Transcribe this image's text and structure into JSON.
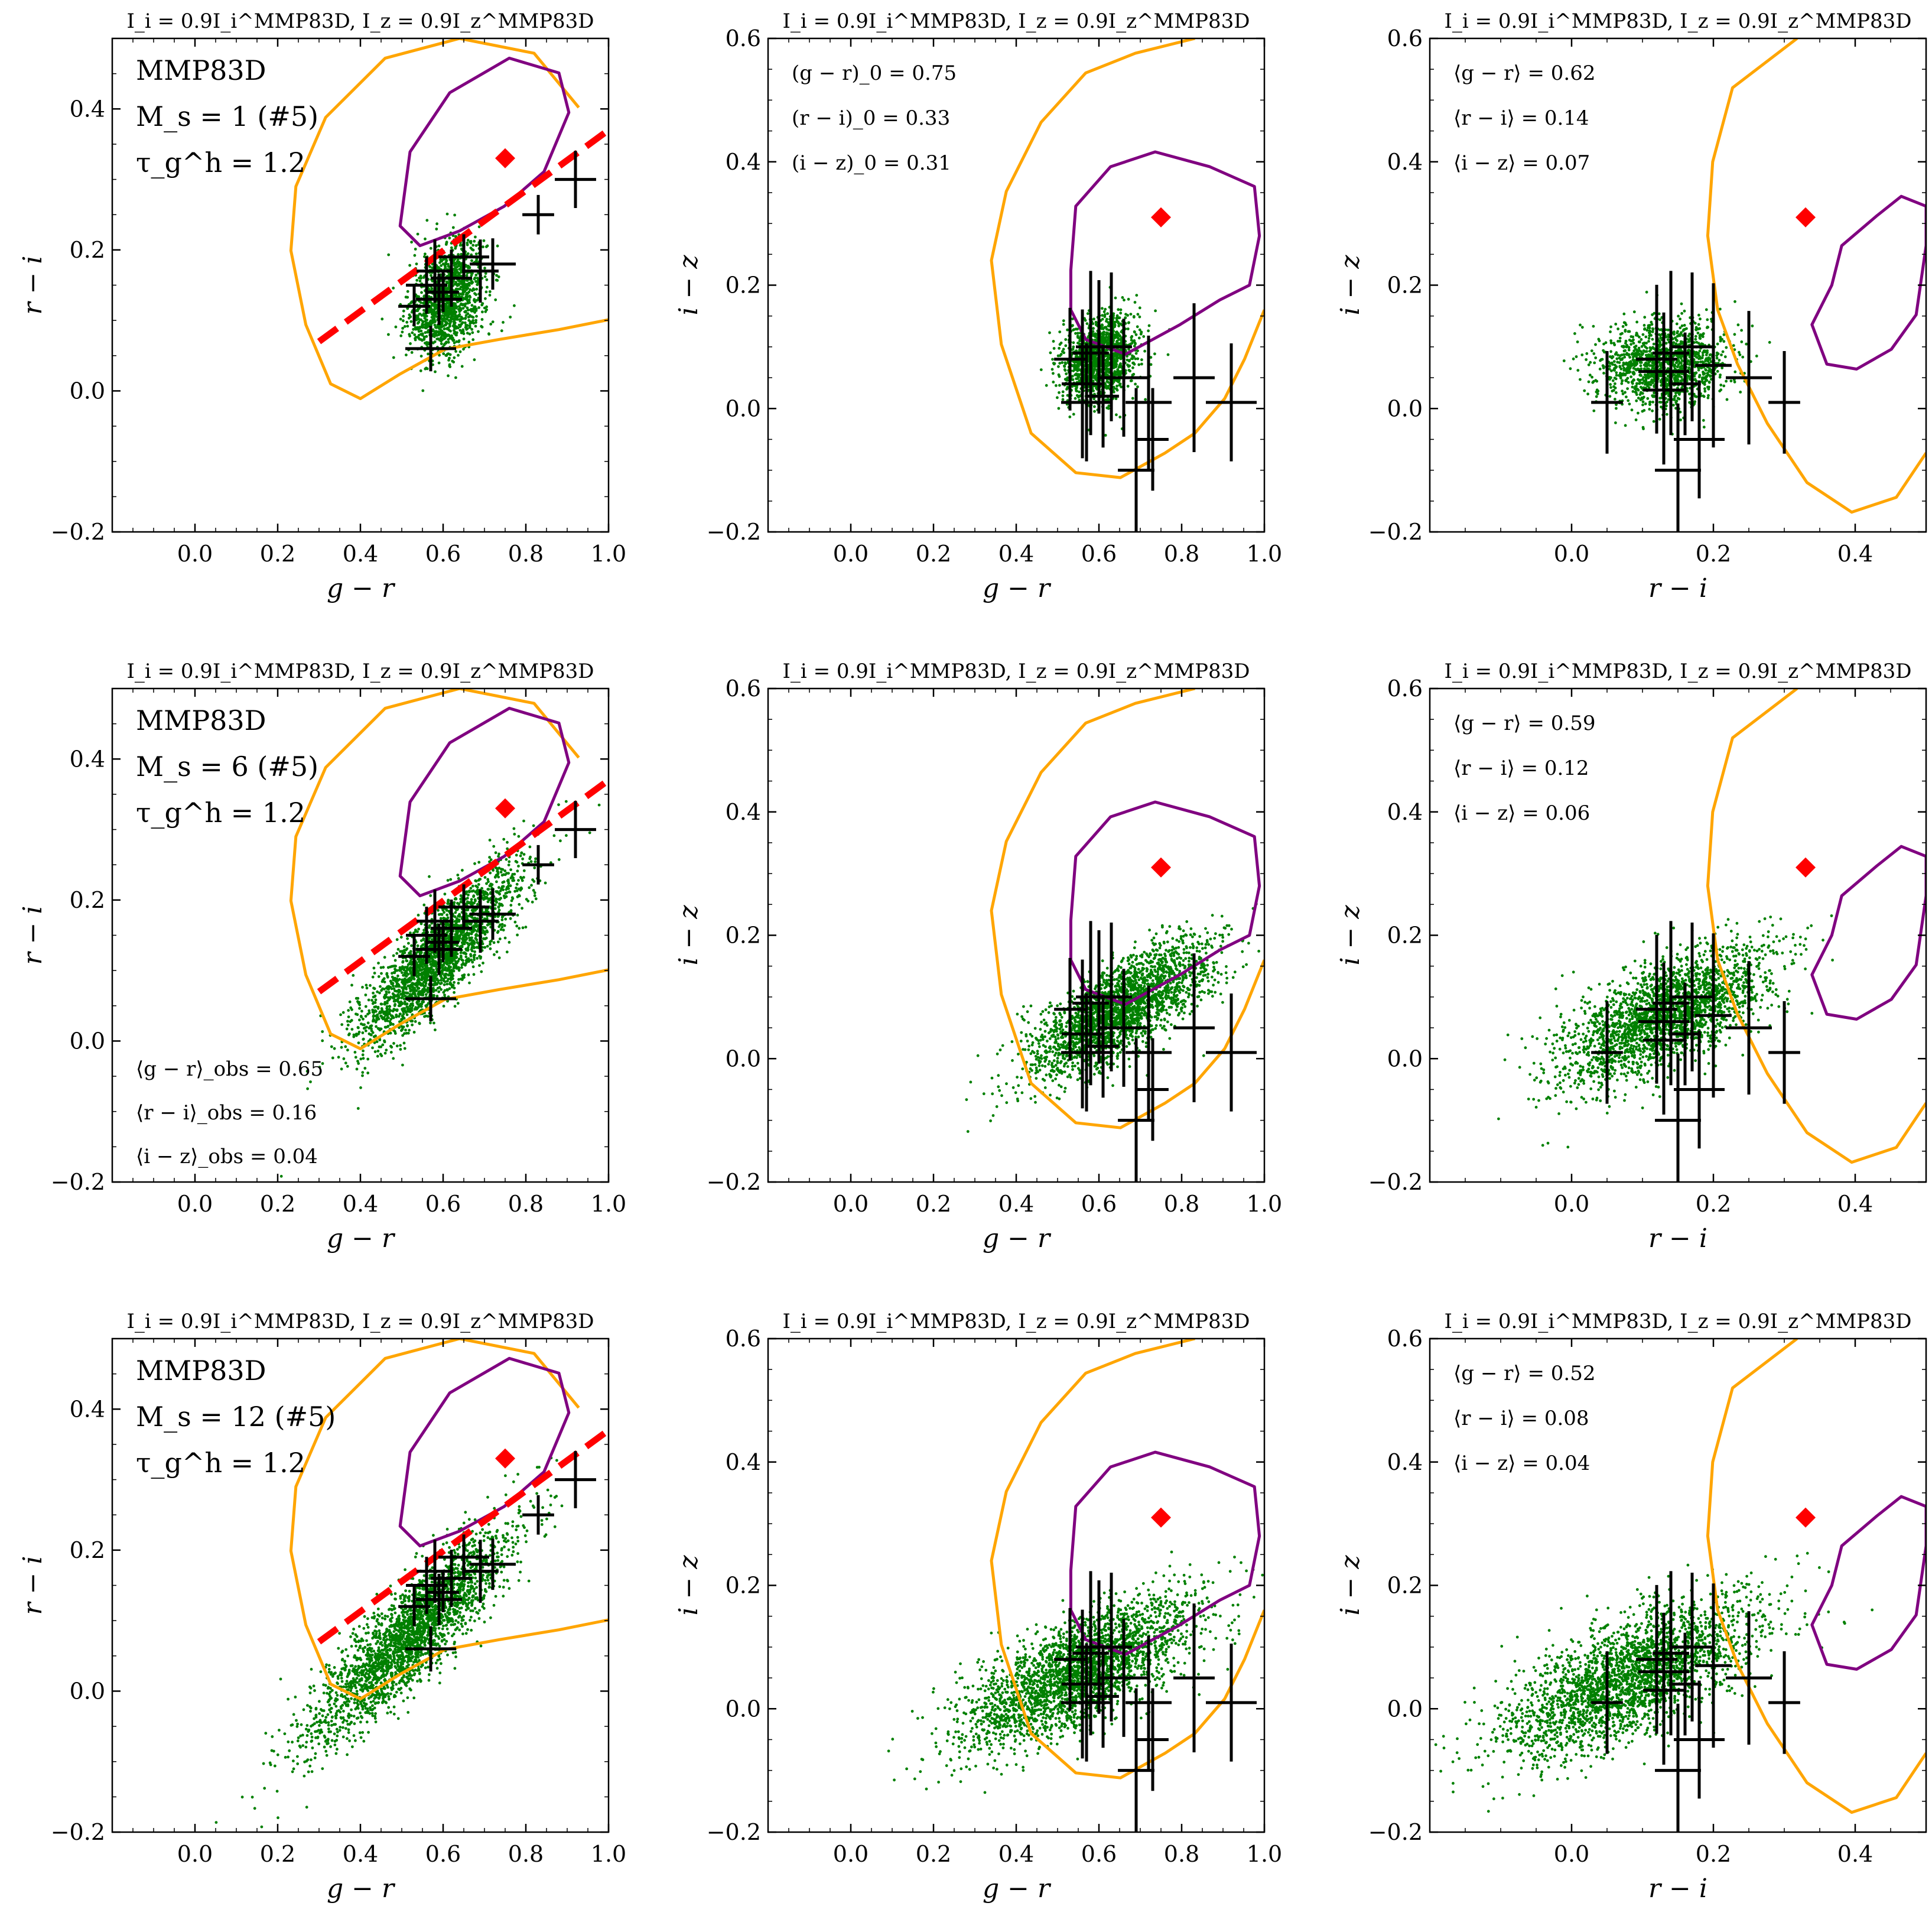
{
  "figure": {
    "description": "Colour-colour diagrams for MMP83D models",
    "colors": {
      "orange_contour": "#FFA500",
      "purple_contour": "#800080",
      "model_points": "#008000",
      "red_marker": "#FF0000",
      "red_line": "#FF0000",
      "obs_crosses": "#000000"
    }
  },
  "chart_data": [
    {
      "id": "r1c1",
      "type": "scatter",
      "title": "I_i = 0.9I_i^MMP83D, I_z = 0.9I_z^MMP83D",
      "xlabel": "g − r",
      "ylabel": "r − i",
      "xlim": [
        -0.2,
        1.0
      ],
      "ylim": [
        -0.2,
        0.5
      ],
      "xticks": [
        "0.0",
        "0.2",
        "0.4",
        "0.6",
        "0.8",
        "1.0"
      ],
      "yticks": [
        "−0.2",
        "0.0",
        "0.2",
        "0.4"
      ],
      "annotations": [
        "MMP83D",
        "M_s = 1 (#5)",
        "τ_g^h = 1.2"
      ],
      "model_cloud": {
        "center": [
          0.61,
          0.13
        ],
        "spread": [
          0.045,
          0.04
        ],
        "rho": 0.3,
        "n": 1400
      },
      "red_marker": [
        0.75,
        0.33
      ],
      "red_line": [
        [
          0.3,
          0.07
        ],
        [
          1.0,
          0.37
        ]
      ],
      "obs_points": [
        [
          0.53,
          0.12
        ],
        [
          0.56,
          0.15
        ],
        [
          0.57,
          0.06
        ],
        [
          0.58,
          0.17
        ],
        [
          0.59,
          0.13
        ],
        [
          0.6,
          0.14
        ],
        [
          0.62,
          0.16
        ],
        [
          0.65,
          0.19
        ],
        [
          0.69,
          0.17
        ],
        [
          0.72,
          0.18
        ],
        [
          0.83,
          0.25
        ],
        [
          0.92,
          0.3
        ]
      ]
    },
    {
      "id": "r1c2",
      "type": "scatter",
      "title": "I_i = 0.9I_i^MMP83D, I_z = 0.9I_z^MMP83D",
      "xlabel": "g − r",
      "ylabel": "i − z",
      "xlim": [
        -0.2,
        1.0
      ],
      "ylim": [
        -0.2,
        0.6
      ],
      "xticks": [
        "0.0",
        "0.2",
        "0.4",
        "0.6",
        "0.8",
        "1.0"
      ],
      "yticks": [
        "−0.2",
        "0.0",
        "0.2",
        "0.4",
        "0.6"
      ],
      "annotations": [
        "(g − r)_0 = 0.75",
        "(r − i)_0 = 0.33",
        "(i − z)_0 = 0.31"
      ],
      "model_cloud": {
        "center": [
          0.6,
          0.08
        ],
        "spread": [
          0.045,
          0.035
        ],
        "rho": 0.2,
        "n": 1400
      },
      "red_marker": [
        0.75,
        0.31
      ],
      "obs_points": [
        [
          0.53,
          0.08
        ],
        [
          0.56,
          0.04
        ],
        [
          0.57,
          0.01
        ],
        [
          0.58,
          0.09
        ],
        [
          0.6,
          0.1
        ],
        [
          0.61,
          0.02
        ],
        [
          0.63,
          0.1
        ],
        [
          0.66,
          0.05
        ],
        [
          0.69,
          -0.1
        ],
        [
          0.72,
          0.01
        ],
        [
          0.73,
          -0.05
        ],
        [
          0.83,
          0.05
        ],
        [
          0.92,
          0.01
        ]
      ]
    },
    {
      "id": "r1c3",
      "type": "scatter",
      "title": "I_i = 0.9I_i^MMP83D, I_z = 0.9I_z^MMP83D",
      "xlabel": "r − i",
      "ylabel": "i − z",
      "xlim": [
        -0.2,
        0.5
      ],
      "ylim": [
        -0.2,
        0.6
      ],
      "xticks": [
        "0.0",
        "0.2",
        "0.4"
      ],
      "yticks": [
        "−0.2",
        "0.0",
        "0.2",
        "0.4",
        "0.6"
      ],
      "annotations": [
        "⟨g − r⟩ = 0.62",
        "⟨r − i⟩ = 0.14",
        "⟨i − z⟩ = 0.07"
      ],
      "model_cloud": {
        "center": [
          0.13,
          0.07
        ],
        "spread": [
          0.045,
          0.035
        ],
        "rho": 0.1,
        "n": 1400
      },
      "red_marker": [
        0.33,
        0.31
      ],
      "obs_points": [
        [
          0.05,
          0.01
        ],
        [
          0.12,
          0.08
        ],
        [
          0.13,
          0.06
        ],
        [
          0.14,
          0.09
        ],
        [
          0.15,
          -0.1
        ],
        [
          0.16,
          0.04
        ],
        [
          0.17,
          0.1
        ],
        [
          0.18,
          -0.05
        ],
        [
          0.2,
          0.07
        ],
        [
          0.25,
          0.05
        ],
        [
          0.3,
          0.01
        ],
        [
          0.13,
          0.03
        ]
      ]
    },
    {
      "id": "r2c1",
      "type": "scatter",
      "title": "I_i = 0.9I_i^MMP83D, I_z = 0.9I_z^MMP83D",
      "xlabel": "g − r",
      "ylabel": "r − i",
      "xlim": [
        -0.2,
        1.0
      ],
      "ylim": [
        -0.2,
        0.5
      ],
      "xticks": [
        "0.0",
        "0.2",
        "0.4",
        "0.6",
        "0.8",
        "1.0"
      ],
      "yticks": [
        "−0.2",
        "0.0",
        "0.2",
        "0.4"
      ],
      "annotations": [
        "MMP83D",
        "M_s = 6 (#5)",
        "τ_g^h = 1.2",
        "⟨g − r⟩_obs = 0.65",
        "⟨r − i⟩_obs = 0.16",
        "⟨i − z⟩_obs = 0.04"
      ],
      "model_cloud": {
        "center": [
          0.59,
          0.12
        ],
        "spread": [
          0.1,
          0.065
        ],
        "rho": 0.85,
        "n": 2400
      },
      "red_marker": [
        0.75,
        0.33
      ],
      "red_line": [
        [
          0.3,
          0.07
        ],
        [
          1.0,
          0.37
        ]
      ],
      "obs_points": [
        [
          0.53,
          0.12
        ],
        [
          0.56,
          0.15
        ],
        [
          0.57,
          0.06
        ],
        [
          0.58,
          0.17
        ],
        [
          0.59,
          0.13
        ],
        [
          0.6,
          0.14
        ],
        [
          0.62,
          0.16
        ],
        [
          0.65,
          0.19
        ],
        [
          0.69,
          0.17
        ],
        [
          0.72,
          0.18
        ],
        [
          0.83,
          0.25
        ],
        [
          0.92,
          0.3
        ]
      ]
    },
    {
      "id": "r2c2",
      "type": "scatter",
      "title": "I_i = 0.9I_i^MMP83D, I_z = 0.9I_z^MMP83D",
      "xlabel": "g − r",
      "ylabel": "i − z",
      "xlim": [
        -0.2,
        1.0
      ],
      "ylim": [
        -0.2,
        0.6
      ],
      "xticks": [
        "0.0",
        "0.2",
        "0.4",
        "0.6",
        "0.8",
        "1.0"
      ],
      "yticks": [
        "−0.2",
        "0.0",
        "0.2",
        "0.4",
        "0.6"
      ],
      "annotations": [],
      "model_cloud": {
        "center": [
          0.65,
          0.08
        ],
        "spread": [
          0.11,
          0.055
        ],
        "rho": 0.75,
        "n": 2400
      },
      "red_marker": [
        0.75,
        0.31
      ],
      "obs_points": [
        [
          0.53,
          0.08
        ],
        [
          0.56,
          0.04
        ],
        [
          0.57,
          0.01
        ],
        [
          0.58,
          0.09
        ],
        [
          0.6,
          0.1
        ],
        [
          0.61,
          0.02
        ],
        [
          0.63,
          0.1
        ],
        [
          0.66,
          0.05
        ],
        [
          0.69,
          -0.1
        ],
        [
          0.72,
          0.01
        ],
        [
          0.73,
          -0.05
        ],
        [
          0.83,
          0.05
        ],
        [
          0.92,
          0.01
        ]
      ]
    },
    {
      "id": "r2c3",
      "type": "scatter",
      "title": "I_i = 0.9I_i^MMP83D, I_z = 0.9I_z^MMP83D",
      "xlabel": "r − i",
      "ylabel": "i − z",
      "xlim": [
        -0.2,
        0.5
      ],
      "ylim": [
        -0.2,
        0.6
      ],
      "xticks": [
        "0.0",
        "0.2",
        "0.4"
      ],
      "yticks": [
        "−0.2",
        "0.0",
        "0.2",
        "0.4",
        "0.6"
      ],
      "annotations": [
        "⟨g − r⟩ = 0.59",
        "⟨r − i⟩ = 0.12",
        "⟨i − z⟩ = 0.06"
      ],
      "model_cloud": {
        "center": [
          0.13,
          0.07
        ],
        "spread": [
          0.075,
          0.055
        ],
        "rho": 0.65,
        "n": 2400
      },
      "red_marker": [
        0.33,
        0.31
      ],
      "obs_points": [
        [
          0.05,
          0.01
        ],
        [
          0.12,
          0.08
        ],
        [
          0.13,
          0.06
        ],
        [
          0.14,
          0.09
        ],
        [
          0.15,
          -0.1
        ],
        [
          0.16,
          0.04
        ],
        [
          0.17,
          0.1
        ],
        [
          0.18,
          -0.05
        ],
        [
          0.2,
          0.07
        ],
        [
          0.25,
          0.05
        ],
        [
          0.3,
          0.01
        ],
        [
          0.13,
          0.03
        ]
      ]
    },
    {
      "id": "r3c1",
      "type": "scatter",
      "title": "I_i = 0.9I_i^MMP83D, I_z = 0.9I_z^MMP83D",
      "xlabel": "g − r",
      "ylabel": "r − i",
      "xlim": [
        -0.2,
        1.0
      ],
      "ylim": [
        -0.2,
        0.5
      ],
      "xticks": [
        "0.0",
        "0.2",
        "0.4",
        "0.6",
        "0.8",
        "1.0"
      ],
      "yticks": [
        "−0.2",
        "0.0",
        "0.2",
        "0.4"
      ],
      "annotations": [
        "MMP83D",
        "M_s = 12 (#5)",
        "τ_g^h = 1.2"
      ],
      "model_cloud": {
        "center": [
          0.52,
          0.08
        ],
        "spread": [
          0.12,
          0.075
        ],
        "rho": 0.88,
        "n": 2600
      },
      "red_marker": [
        0.75,
        0.33
      ],
      "red_line": [
        [
          0.3,
          0.07
        ],
        [
          1.0,
          0.37
        ]
      ],
      "obs_points": [
        [
          0.53,
          0.12
        ],
        [
          0.56,
          0.15
        ],
        [
          0.57,
          0.06
        ],
        [
          0.58,
          0.17
        ],
        [
          0.59,
          0.13
        ],
        [
          0.6,
          0.14
        ],
        [
          0.62,
          0.16
        ],
        [
          0.65,
          0.19
        ],
        [
          0.69,
          0.17
        ],
        [
          0.72,
          0.18
        ],
        [
          0.83,
          0.25
        ],
        [
          0.92,
          0.3
        ]
      ]
    },
    {
      "id": "r3c2",
      "type": "scatter",
      "title": "I_i = 0.9I_i^MMP83D, I_z = 0.9I_z^MMP83D",
      "xlabel": "g − r",
      "ylabel": "i − z",
      "xlim": [
        -0.2,
        1.0
      ],
      "ylim": [
        -0.2,
        0.6
      ],
      "xticks": [
        "0.0",
        "0.2",
        "0.4",
        "0.6",
        "0.8",
        "1.0"
      ],
      "yticks": [
        "−0.2",
        "0.0",
        "0.2",
        "0.4",
        "0.6"
      ],
      "annotations": [],
      "model_cloud": {
        "center": [
          0.55,
          0.06
        ],
        "spread": [
          0.14,
          0.06
        ],
        "rho": 0.72,
        "n": 2600
      },
      "red_marker": [
        0.75,
        0.31
      ],
      "obs_points": [
        [
          0.53,
          0.08
        ],
        [
          0.56,
          0.04
        ],
        [
          0.57,
          0.01
        ],
        [
          0.58,
          0.09
        ],
        [
          0.6,
          0.1
        ],
        [
          0.61,
          0.02
        ],
        [
          0.63,
          0.1
        ],
        [
          0.66,
          0.05
        ],
        [
          0.69,
          -0.1
        ],
        [
          0.72,
          0.01
        ],
        [
          0.73,
          -0.05
        ],
        [
          0.83,
          0.05
        ],
        [
          0.92,
          0.01
        ]
      ]
    },
    {
      "id": "r3c3",
      "type": "scatter",
      "title": "I_i = 0.9I_i^MMP83D, I_z = 0.9I_z^MMP83D",
      "xlabel": "r − i",
      "ylabel": "i − z",
      "xlim": [
        -0.2,
        0.5
      ],
      "ylim": [
        -0.2,
        0.6
      ],
      "xticks": [
        "0.0",
        "0.2",
        "0.4"
      ],
      "yticks": [
        "−0.2",
        "0.0",
        "0.2",
        "0.4",
        "0.6"
      ],
      "annotations": [
        "⟨g − r⟩ = 0.52",
        "⟨r − i⟩ = 0.08",
        "⟨i − z⟩ = 0.04"
      ],
      "model_cloud": {
        "center": [
          0.08,
          0.05
        ],
        "spread": [
          0.09,
          0.065
        ],
        "rho": 0.7,
        "n": 2600
      },
      "red_marker": [
        0.33,
        0.31
      ],
      "obs_points": [
        [
          0.05,
          0.01
        ],
        [
          0.12,
          0.08
        ],
        [
          0.13,
          0.06
        ],
        [
          0.14,
          0.09
        ],
        [
          0.15,
          -0.1
        ],
        [
          0.16,
          0.04
        ],
        [
          0.17,
          0.1
        ],
        [
          0.18,
          -0.05
        ],
        [
          0.2,
          0.07
        ],
        [
          0.25,
          0.05
        ],
        [
          0.3,
          0.01
        ],
        [
          0.13,
          0.03
        ]
      ]
    }
  ]
}
